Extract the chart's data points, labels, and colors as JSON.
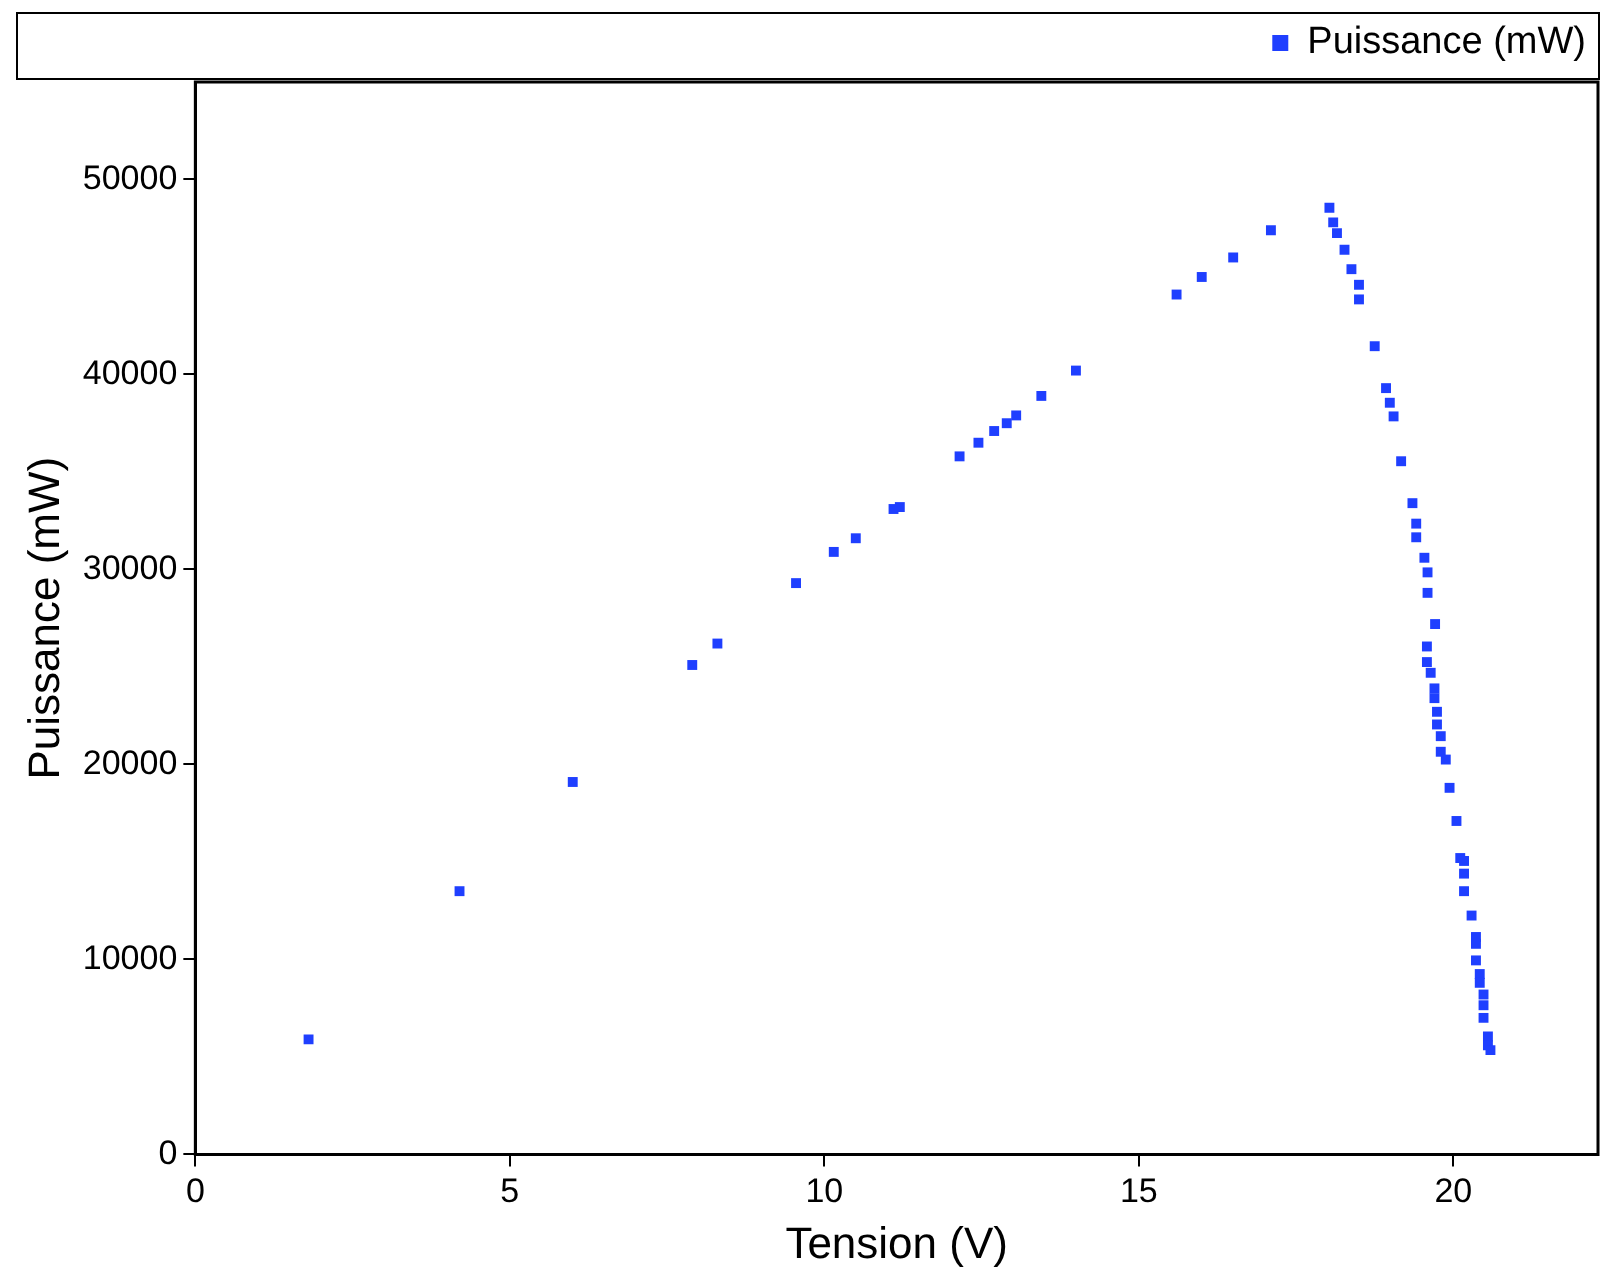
{
  "chart_data": {
    "type": "scatter",
    "xlabel": "Tension (V)",
    "ylabel": "Puissance (mW)",
    "xlim": [
      0,
      22.3
    ],
    "ylim": [
      0,
      55000
    ],
    "xticks": [
      0,
      5,
      10,
      15,
      20
    ],
    "yticks": [
      0,
      10000,
      20000,
      30000,
      40000,
      50000
    ],
    "grid": false,
    "legend": "top right",
    "marker": "square",
    "series": [
      {
        "name": "Puissance (mW)",
        "color": "#1f3fff",
        "x": [
          1.8,
          4.2,
          6.0,
          7.9,
          8.3,
          9.55,
          10.15,
          10.5,
          11.1,
          11.2,
          12.15,
          12.45,
          12.7,
          12.9,
          13.05,
          13.45,
          14.0,
          15.6,
          16.0,
          16.5,
          17.1,
          18.03,
          18.09,
          18.15,
          18.27,
          18.38,
          18.5,
          18.5,
          18.75,
          18.93,
          18.99,
          19.05,
          19.17,
          19.35,
          19.41,
          19.41,
          19.54,
          19.59,
          19.59,
          19.71,
          19.58,
          19.58,
          19.64,
          19.7,
          19.7,
          19.74,
          19.74,
          19.8,
          19.8,
          19.88,
          19.94,
          20.05,
          20.11,
          20.17,
          20.17,
          20.17,
          20.29,
          20.36,
          20.36,
          20.36,
          20.42,
          20.42,
          20.48,
          20.48,
          20.48,
          20.55,
          20.55,
          20.59
        ],
        "values": [
          5900,
          13500,
          19100,
          25100,
          26200,
          29300,
          30900,
          31600,
          33100,
          33200,
          35800,
          36500,
          37100,
          37500,
          37900,
          38900,
          40200,
          44100,
          45000,
          46000,
          47400,
          48550,
          47800,
          47250,
          46400,
          45400,
          44600,
          43850,
          41450,
          39300,
          38550,
          37850,
          35550,
          33400,
          32350,
          31650,
          30600,
          29850,
          28800,
          27200,
          26050,
          25250,
          24700,
          23900,
          23400,
          22700,
          22050,
          21450,
          20650,
          20250,
          18800,
          17100,
          15200,
          15050,
          14400,
          13500,
          12250,
          11150,
          10800,
          9950,
          9250,
          8800,
          8200,
          7650,
          7000,
          6050,
          5600,
          5350
        ]
      }
    ]
  }
}
